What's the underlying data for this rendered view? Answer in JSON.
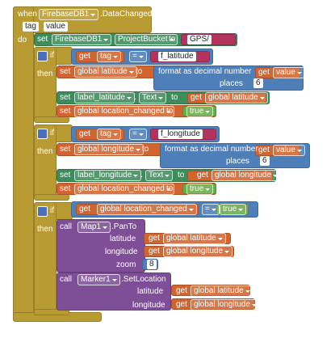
{
  "event": {
    "header": [
      "when",
      "FirebaseDB1",
      ".DataChanged"
    ],
    "params": [
      "tag",
      "value"
    ],
    "do": "do"
  },
  "bucket": [
    "set",
    "FirebaseDB1",
    ".",
    "ProjectBucket",
    "to",
    "GPS/"
  ],
  "ifs": [
    {
      "if": "if",
      "condition": [
        "get",
        "tag",
        "=",
        "f_latitude"
      ],
      "then": "then",
      "set_var": [
        "set",
        "global latitude",
        "to",
        "format as decimal number",
        "get",
        "value",
        "places",
        6
      ],
      "set_label": [
        "set",
        "label_latitude",
        ".",
        "Text",
        "to",
        "get",
        "global latitude"
      ],
      "set_changed": [
        "set",
        "global location_changed",
        "to",
        "true"
      ]
    },
    {
      "if": "if",
      "condition": [
        "get",
        "tag",
        "=",
        "f_longitude"
      ],
      "then": "then",
      "set_var": [
        "set",
        "global longitude",
        "to",
        "format as decimal number",
        "get",
        "value",
        "places",
        6
      ],
      "set_label": [
        "set",
        "label_longitude",
        ".",
        "Text",
        "to",
        "get",
        "global longitude"
      ],
      "set_changed": [
        "set",
        "global location_changed",
        "to",
        "true"
      ]
    },
    {
      "if": "if",
      "condition": [
        "get",
        "global location_changed",
        "=",
        "true"
      ],
      "then": "then",
      "pan_to": [
        "call",
        "Map1",
        ".PanTo",
        "latitude",
        "get",
        "global latitude",
        "longitude",
        "get",
        "global longitude",
        "zoom",
        8
      ],
      "set_location": [
        "call",
        "Marker1",
        ".SetLocation",
        "latitude",
        "get",
        "global latitude",
        "longitude",
        "get",
        "global longitude"
      ]
    }
  ]
}
